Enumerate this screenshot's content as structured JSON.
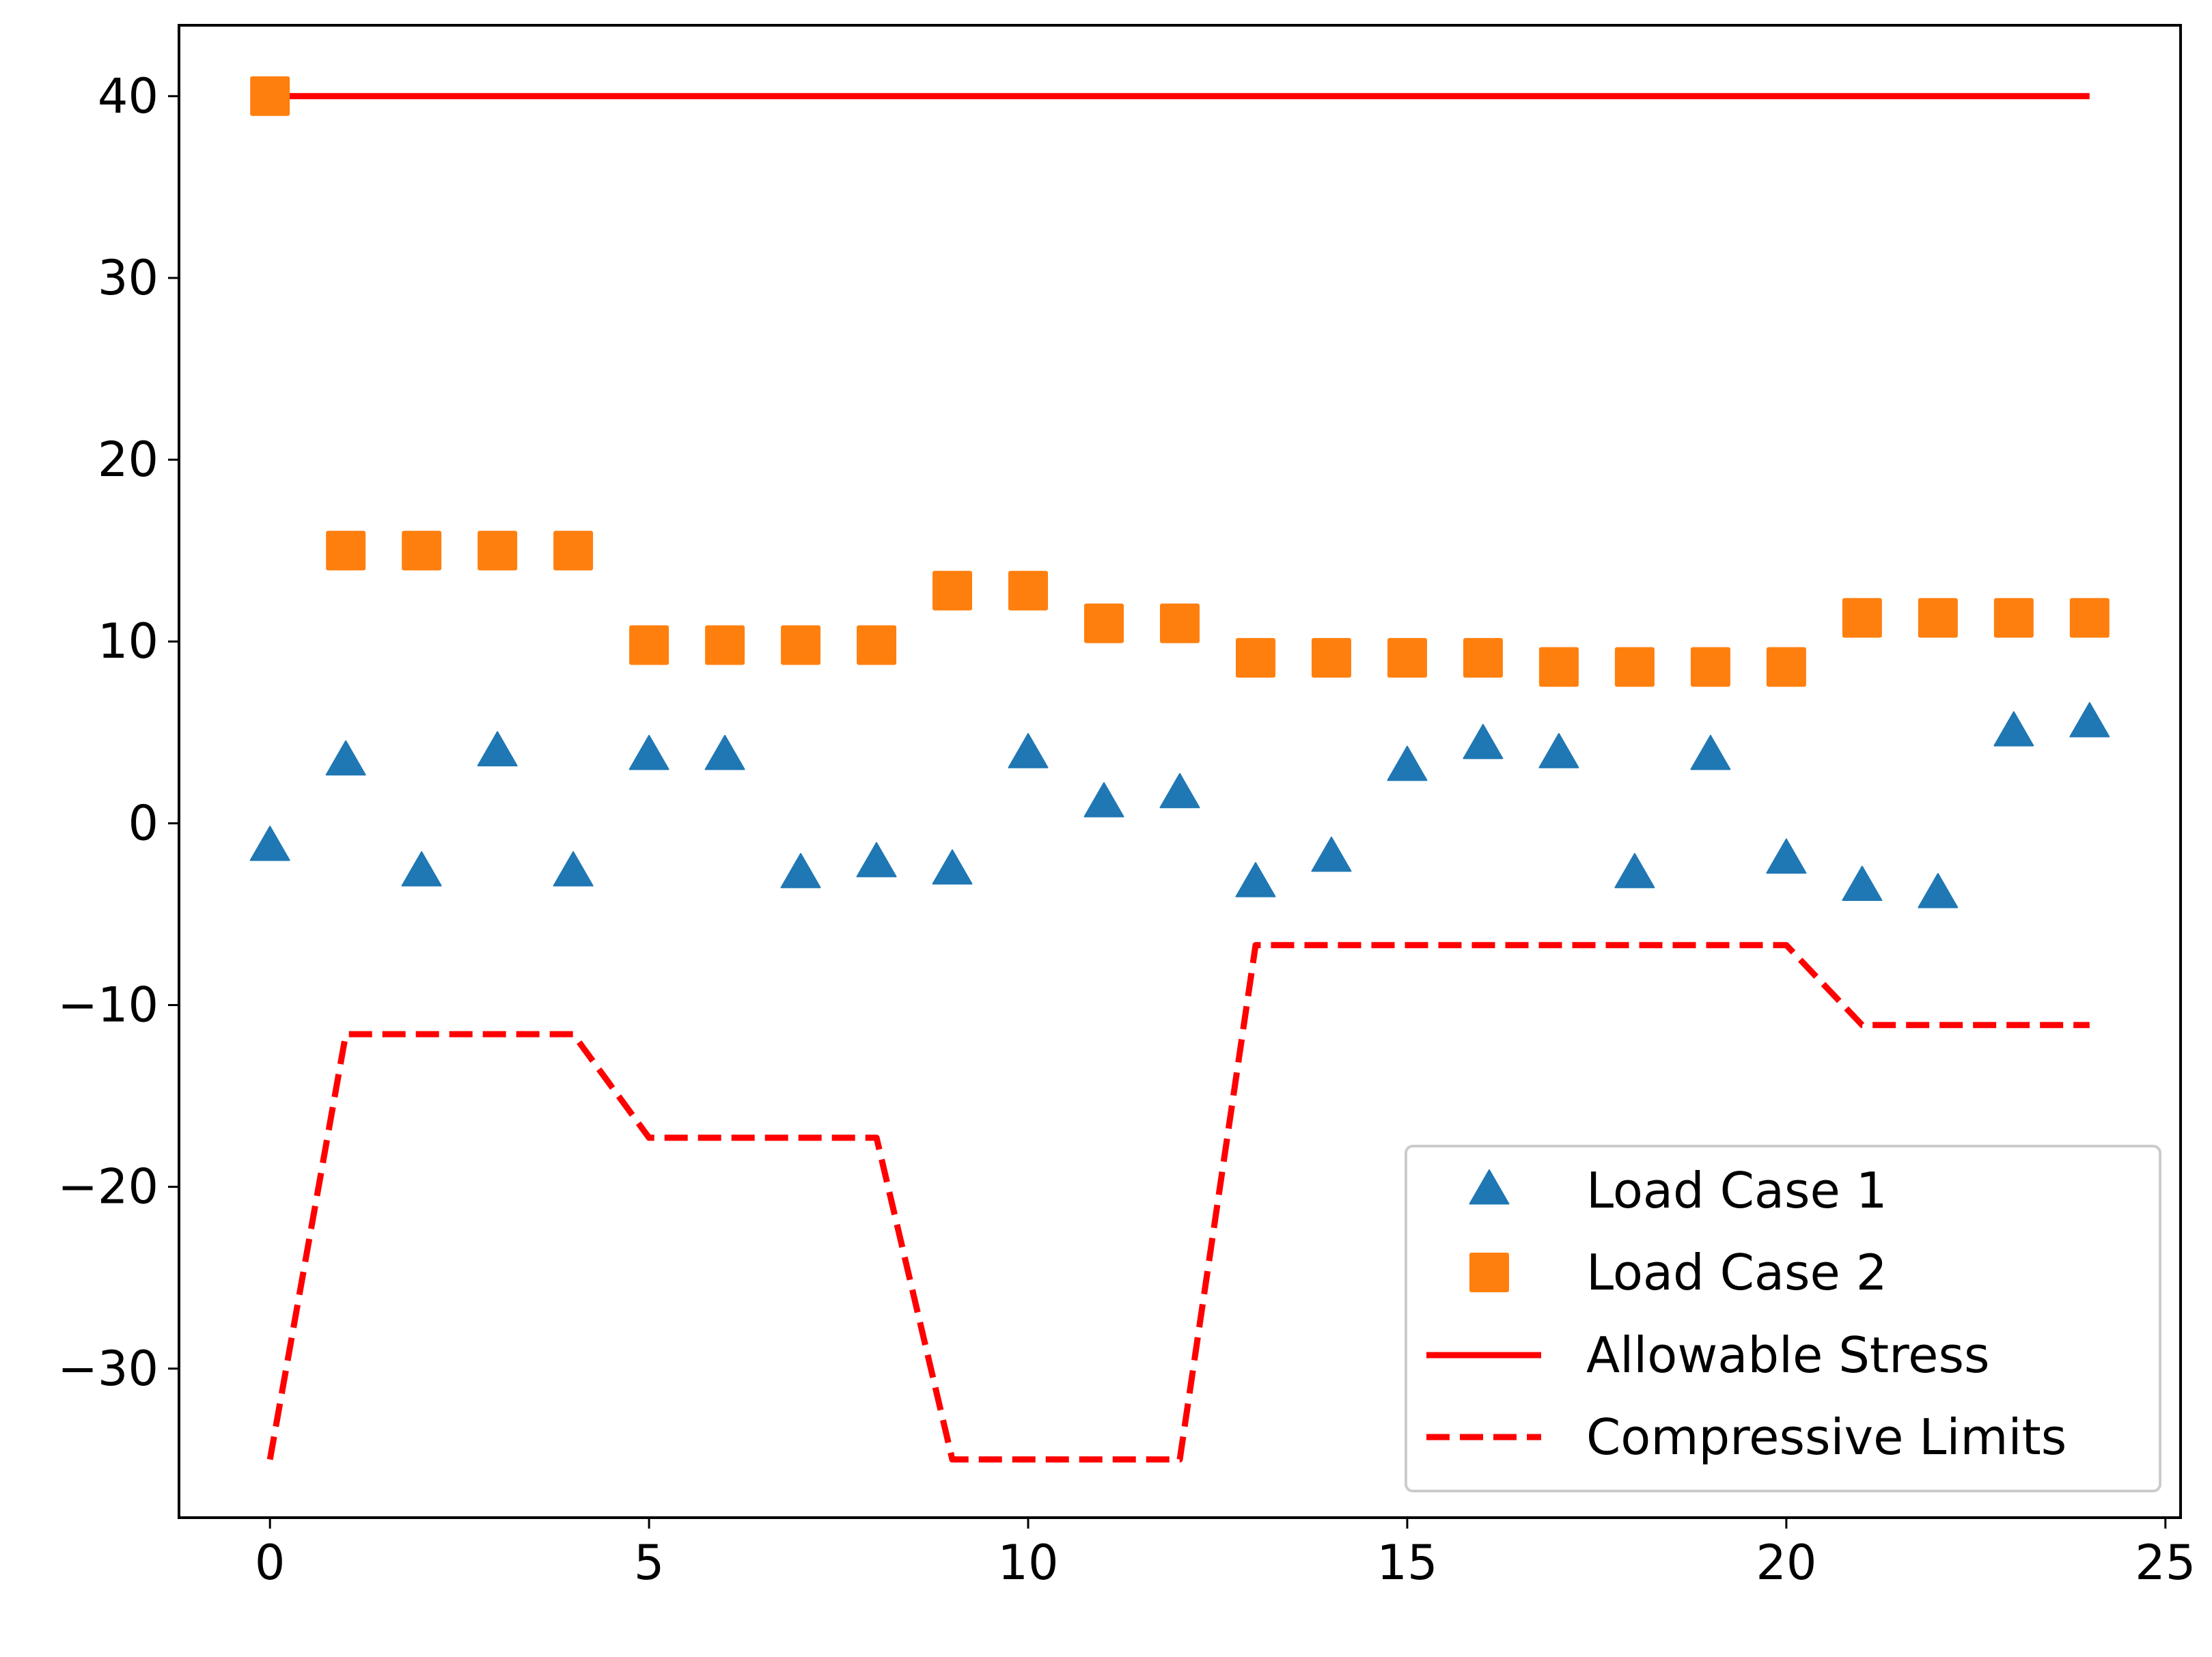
{
  "chart_data": {
    "type": "scatter",
    "title": "",
    "xlabel": "",
    "ylabel": "",
    "xlim": [
      -1.2,
      25.2
    ],
    "ylim": [
      -38.2,
      43.9
    ],
    "xticks": [
      0,
      5,
      10,
      15,
      20,
      25
    ],
    "yticks": [
      -30,
      -20,
      -10,
      0,
      10,
      20,
      30,
      40
    ],
    "grid": false,
    "legend_position": "lower-right",
    "series": [
      {
        "name": "Load Case 1",
        "style": "triangle-markers",
        "color": "#1f77b4",
        "x": [
          0,
          1,
          2,
          3,
          4,
          5,
          6,
          7,
          8,
          9,
          10,
          11,
          12,
          13,
          14,
          15,
          16,
          17,
          18,
          19,
          20,
          21,
          22,
          23,
          24
        ],
        "values": [
          -1.3,
          3.4,
          -2.7,
          3.9,
          -2.7,
          3.7,
          3.7,
          -2.8,
          -2.2,
          -2.6,
          3.8,
          1.1,
          1.6,
          -3.3,
          -1.9,
          3.1,
          4.3,
          3.8,
          -2.8,
          3.7,
          -2.0,
          -3.5,
          -3.9,
          5.0,
          5.5
        ]
      },
      {
        "name": "Load Case 2",
        "style": "square-markers",
        "color": "#ff7f0e",
        "x": [
          0,
          1,
          2,
          3,
          4,
          5,
          6,
          7,
          8,
          9,
          10,
          11,
          12,
          13,
          14,
          15,
          16,
          17,
          18,
          19,
          20,
          21,
          22,
          23,
          24
        ],
        "values": [
          40.0,
          15.0,
          15.0,
          15.0,
          15.0,
          9.8,
          9.8,
          9.8,
          9.8,
          12.8,
          12.8,
          11.0,
          11.0,
          9.1,
          9.1,
          9.1,
          9.1,
          8.6,
          8.6,
          8.6,
          8.6,
          11.3,
          11.3,
          11.3,
          11.3
        ]
      },
      {
        "name": "Allowable Stress",
        "style": "solid-line",
        "color": "#ff0000",
        "x": [
          0,
          24
        ],
        "values": [
          40,
          40
        ]
      },
      {
        "name": "Compressive Limits",
        "style": "dashed-line",
        "color": "#ff0000",
        "x": [
          0,
          1,
          2,
          3,
          4,
          5,
          6,
          7,
          8,
          9,
          10,
          11,
          12,
          13,
          14,
          15,
          16,
          17,
          18,
          19,
          20,
          21,
          22,
          23,
          24
        ],
        "values": [
          -35.0,
          -11.6,
          -11.6,
          -11.6,
          -11.6,
          -17.3,
          -17.3,
          -17.3,
          -17.3,
          -35.0,
          -35.0,
          -35.0,
          -35.0,
          -6.7,
          -6.7,
          -6.7,
          -6.7,
          -6.7,
          -6.7,
          -6.7,
          -6.7,
          -11.1,
          -11.1,
          -11.1,
          -11.1
        ]
      }
    ]
  }
}
